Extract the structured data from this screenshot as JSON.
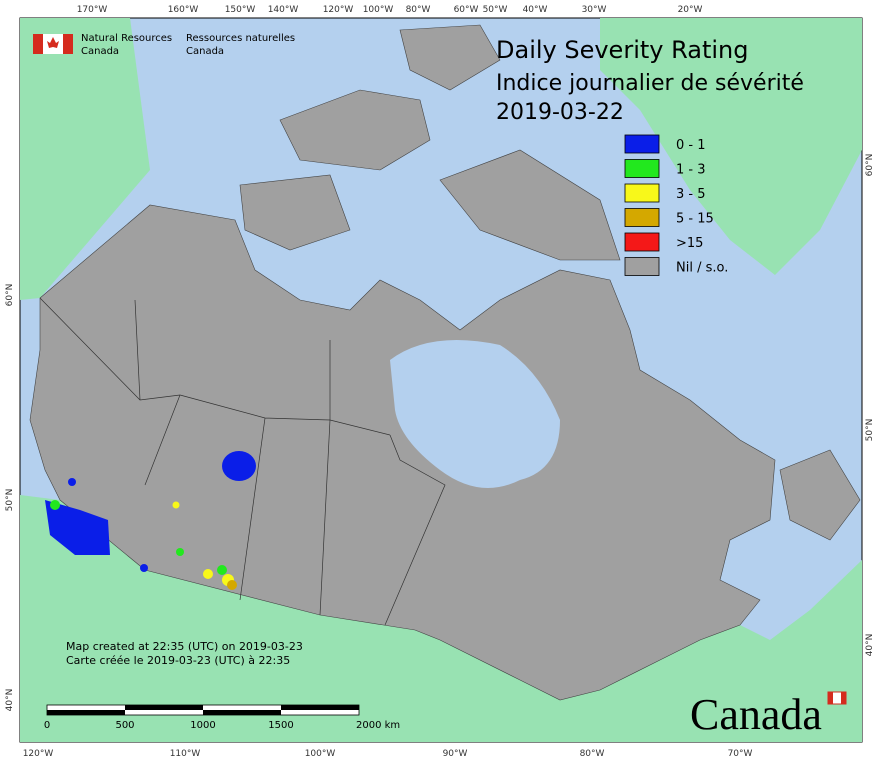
{
  "header": {
    "title": "Daily Severity Rating",
    "subtitle": "Indice journalier de sévérité",
    "date": "2019-03-22"
  },
  "agency": {
    "en": [
      "Natural Resources",
      "Canada"
    ],
    "fr": [
      "Ressources naturelles",
      "Canada"
    ]
  },
  "legend": [
    {
      "label": "0 - 1",
      "color": "#0a1ee8"
    },
    {
      "label": "1 - 3",
      "color": "#22e81e"
    },
    {
      "label": "3 - 5",
      "color": "#f8f81a"
    },
    {
      "label": "5 - 15",
      "color": "#d4a800"
    },
    {
      "label": ">15",
      "color": "#f41818"
    },
    {
      "label": "Nil / s.o.",
      "color": "#a0a0a0"
    }
  ],
  "graticule": {
    "top": [
      "170°W",
      "160°W",
      "150°W",
      "140°W",
      "120°W",
      "100°W",
      "80°W",
      "60°W",
      "50°W",
      "40°W",
      "30°W",
      "20°W"
    ],
    "bottom": [
      "120°W",
      "110°W",
      "100°W",
      "90°W",
      "80°W",
      "70°W"
    ],
    "left": [
      "60°N",
      "50°N",
      "40°N"
    ],
    "right": [
      "60°N",
      "50°N",
      "40°N"
    ]
  },
  "credits": [
    "Map created at 22:35 (UTC) on 2019-03-23",
    "Carte créée le 2019-03-23 (UTC) à 22:35"
  ],
  "scale_bar": [
    "0",
    "500",
    "1000",
    "1500",
    "2000 km"
  ],
  "wordmark": "Canada"
}
